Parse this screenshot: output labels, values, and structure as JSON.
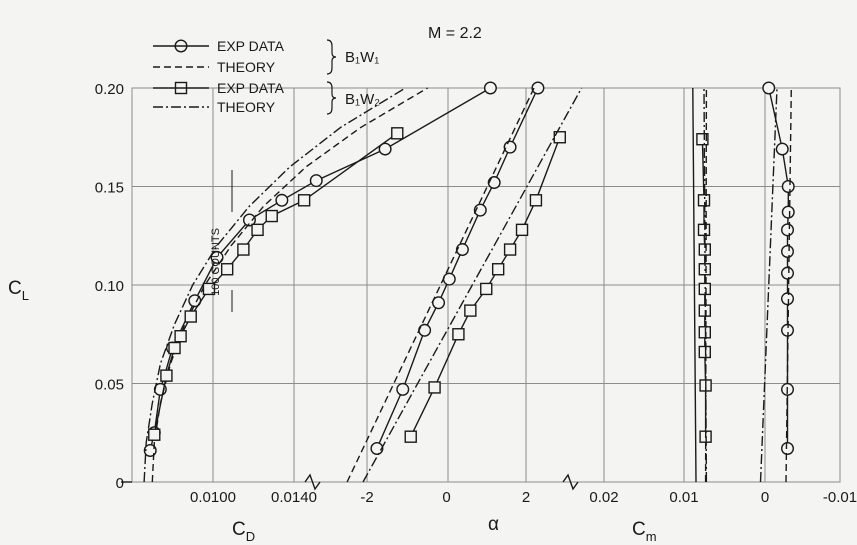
{
  "chart_data": {
    "type": "line",
    "title": "M = 2.2",
    "ylabel": "C_L",
    "ylim": [
      0,
      0.2
    ],
    "y_ticks": [
      "0",
      "0.05",
      "0.10",
      "0.15",
      "0.20"
    ],
    "grid": true,
    "annotation_scale": "100 COUNTS",
    "configurations": [
      {
        "name": "B₁W₁",
        "exp_label": "EXP DATA",
        "theory_label": "THEORY",
        "marker": "circle",
        "theory_style": "dashed"
      },
      {
        "name": "B₁W₂",
        "exp_label": "EXP DATA",
        "theory_label": "THEORY",
        "marker": "square",
        "theory_style": "dash-dot"
      }
    ],
    "panels": [
      {
        "id": "drag",
        "xlabel": "C_D",
        "x_ticks": [
          "0.0100",
          "0.0140"
        ],
        "series": [
          {
            "name": "B₁W₁ EXP DATA",
            "marker": "circle",
            "points": [
              [
                0.0069,
                0.016
              ],
              [
                0.0071,
                0.025
              ],
              [
                0.0074,
                0.047
              ],
              [
                0.008,
                0.068
              ],
              [
                0.0091,
                0.092
              ],
              [
                0.0102,
                0.114
              ],
              [
                0.0118,
                0.133
              ],
              [
                0.0134,
                0.143
              ],
              [
                0.0151,
                0.153
              ],
              [
                0.0185,
                0.169
              ],
              [
                0.0237,
                0.2
              ]
            ]
          },
          {
            "name": "B₁W₁ THEORY",
            "style": "dashed",
            "points": [
              [
                0.007,
                0.0
              ],
              [
                0.0071,
                0.02
              ],
              [
                0.0074,
                0.04
              ],
              [
                0.0079,
                0.06
              ],
              [
                0.0086,
                0.08
              ],
              [
                0.0096,
                0.1
              ],
              [
                0.0109,
                0.12
              ],
              [
                0.0125,
                0.14
              ],
              [
                0.0146,
                0.16
              ],
              [
                0.0173,
                0.18
              ],
              [
                0.0206,
                0.2
              ]
            ]
          },
          {
            "name": "B₁W₂ EXP DATA",
            "marker": "square",
            "points": [
              [
                0.0071,
                0.024
              ],
              [
                0.0077,
                0.054
              ],
              [
                0.0081,
                0.068
              ],
              [
                0.0084,
                0.074
              ],
              [
                0.0089,
                0.084
              ],
              [
                0.0098,
                0.098
              ],
              [
                0.0107,
                0.108
              ],
              [
                0.0115,
                0.118
              ],
              [
                0.0122,
                0.128
              ],
              [
                0.0129,
                0.135
              ],
              [
                0.0145,
                0.143
              ],
              [
                0.0191,
                0.177
              ]
            ]
          },
          {
            "name": "B₁W₂ THEORY",
            "style": "dash-dot",
            "points": [
              [
                0.0066,
                0.0
              ],
              [
                0.0067,
                0.02
              ],
              [
                0.007,
                0.04
              ],
              [
                0.0074,
                0.06
              ],
              [
                0.0081,
                0.08
              ],
              [
                0.009,
                0.1
              ],
              [
                0.0102,
                0.12
              ],
              [
                0.0118,
                0.14
              ],
              [
                0.0138,
                0.16
              ],
              [
                0.0163,
                0.18
              ],
              [
                0.0195,
                0.2
              ]
            ]
          }
        ]
      },
      {
        "id": "alpha",
        "xlabel": "α",
        "x_ticks": [
          "-2",
          "0",
          "2"
        ],
        "series": [
          {
            "name": "B₁W₁ EXP DATA",
            "marker": "circle",
            "points": [
              [
                -1.75,
                0.017
              ],
              [
                -1.1,
                0.047
              ],
              [
                -0.55,
                0.077
              ],
              [
                -0.2,
                0.091
              ],
              [
                0.07,
                0.103
              ],
              [
                0.4,
                0.118
              ],
              [
                0.85,
                0.138
              ],
              [
                1.2,
                0.152
              ],
              [
                1.6,
                0.17
              ],
              [
                2.3,
                0.2
              ]
            ]
          },
          {
            "name": "B₁W₁ THEORY",
            "style": "dashed",
            "points": [
              [
                -2.5,
                0.0
              ],
              [
                2.2,
                0.2
              ]
            ]
          },
          {
            "name": "B₁W₂ EXP DATA",
            "marker": "square",
            "points": [
              [
                -0.9,
                0.023
              ],
              [
                -0.3,
                0.048
              ],
              [
                0.3,
                0.075
              ],
              [
                0.6,
                0.087
              ],
              [
                1.0,
                0.098
              ],
              [
                1.3,
                0.108
              ],
              [
                1.6,
                0.118
              ],
              [
                1.9,
                0.128
              ],
              [
                2.25,
                0.143
              ],
              [
                2.85,
                0.175
              ]
            ]
          },
          {
            "name": "B₁W₂ THEORY",
            "style": "dash-dot",
            "points": [
              [
                -2.1,
                0.0
              ],
              [
                3.4,
                0.2
              ]
            ]
          }
        ]
      },
      {
        "id": "moment_b1w2",
        "xlabel": "",
        "x_ticks": [
          "0.02",
          "0.01"
        ],
        "series": [
          {
            "name": "B₁W₂ EXP DATA",
            "marker": "square",
            "points": [
              [
                0.0073,
                0.023
              ],
              [
                0.0073,
                0.049
              ],
              [
                0.0074,
                0.066
              ],
              [
                0.0074,
                0.076
              ],
              [
                0.0074,
                0.087
              ],
              [
                0.0074,
                0.098
              ],
              [
                0.0074,
                0.108
              ],
              [
                0.0074,
                0.118
              ],
              [
                0.0075,
                0.128
              ],
              [
                0.0075,
                0.143
              ],
              [
                0.0077,
                0.174
              ]
            ]
          },
          {
            "name": "B₁W₂ THEORY",
            "style": "dash-dot",
            "points": [
              [
                0.0072,
                0.0
              ],
              [
                0.0075,
                0.2
              ]
            ]
          },
          {
            "name": "B₁W₁ THEORY",
            "style": "dashed",
            "points": [
              [
                0.0073,
                0.0
              ],
              [
                0.0072,
                0.2
              ]
            ]
          },
          {
            "name": "B₁W₁ EXP DATA",
            "style": "solid",
            "points": [
              [
                0.0085,
                0.0
              ],
              [
                0.0089,
                0.2
              ]
            ]
          }
        ]
      },
      {
        "id": "moment_b1w1",
        "xlabel": "C_m",
        "x_ticks": [
          "0",
          "-0.01"
        ],
        "series": [
          {
            "name": "B₁W₁ EXP DATA",
            "marker": "circle",
            "points": [
              [
                -0.003,
                0.017
              ],
              [
                -0.003,
                0.047
              ],
              [
                -0.003,
                0.077
              ],
              [
                -0.003,
                0.093
              ],
              [
                -0.003,
                0.106
              ],
              [
                -0.003,
                0.117
              ],
              [
                -0.003,
                0.128
              ],
              [
                -0.0031,
                0.137
              ],
              [
                -0.0031,
                0.15
              ],
              [
                -0.0023,
                0.169
              ],
              [
                -0.0005,
                0.2
              ]
            ]
          },
          {
            "name": "B₁W₁ THEORY",
            "style": "dashed",
            "points": [
              [
                -0.0028,
                0.0
              ],
              [
                -0.0035,
                0.2
              ]
            ]
          },
          {
            "name": "B₁W₂ THEORY",
            "style": "dash-dot",
            "points": [
              [
                0.0006,
                0.0
              ],
              [
                -0.0016,
                0.2
              ]
            ]
          }
        ]
      }
    ],
    "axis_labels": {
      "cl": "C",
      "cl_sub": "L",
      "cd": "C",
      "cd_sub": "D",
      "alpha": "α",
      "cm": "C",
      "cm_sub": "m"
    }
  }
}
